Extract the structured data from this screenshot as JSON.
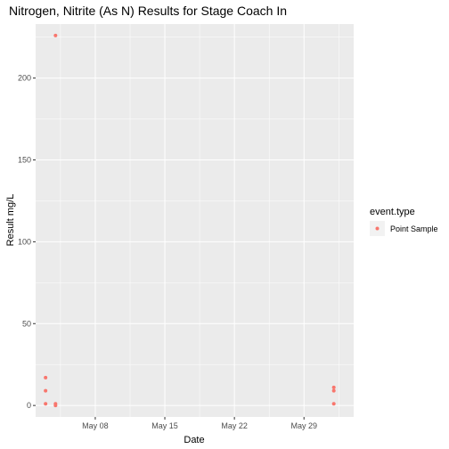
{
  "chart_data": {
    "type": "scatter",
    "title": "Nitrogen, Nitrite  (As N) Results for Stage Coach In",
    "xlabel": "Date",
    "ylabel": "Result mg/L",
    "x_ticks": [
      "May 08",
      "May 15",
      "May 22",
      "May 29"
    ],
    "y_ticks": [
      "0",
      "50",
      "100",
      "150",
      "200"
    ],
    "y_tick_values": [
      0,
      50,
      100,
      150,
      200
    ],
    "xlim": [
      "2023-05-02",
      "2023-06-03"
    ],
    "ylim": [
      -7,
      233
    ],
    "grid": true,
    "legend_placement": "right",
    "legend": {
      "title": "event.type",
      "entries": [
        "Point Sample"
      ]
    },
    "colors": {
      "point": "#F8766D",
      "panel": "#EBEBEB",
      "grid": "#FFFFFF"
    },
    "series": [
      {
        "name": "Point Sample",
        "points": [
          {
            "x": "2023-05-03",
            "y": 17
          },
          {
            "x": "2023-05-03",
            "y": 9
          },
          {
            "x": "2023-05-03",
            "y": 1
          },
          {
            "x": "2023-05-04",
            "y": 226
          },
          {
            "x": "2023-05-04",
            "y": 1
          },
          {
            "x": "2023-05-04",
            "y": 0
          },
          {
            "x": "2023-06-01",
            "y": 11
          },
          {
            "x": "2023-06-01",
            "y": 9
          },
          {
            "x": "2023-06-01",
            "y": 1
          }
        ]
      }
    ]
  }
}
